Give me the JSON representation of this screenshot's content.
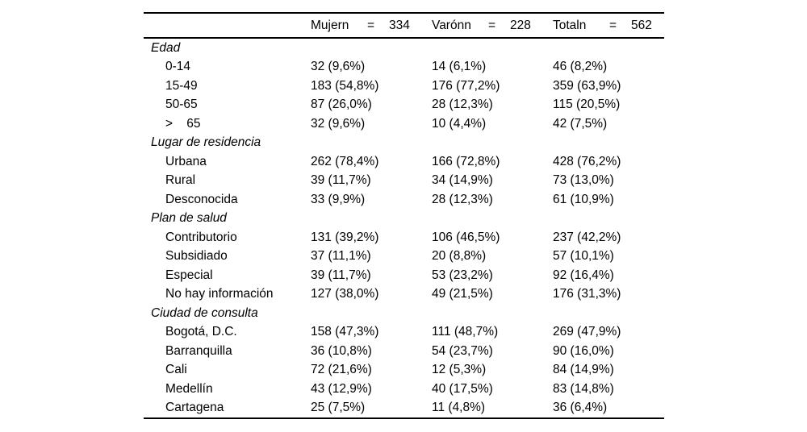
{
  "colors": {
    "background": "#ffffff",
    "text": "#000000",
    "rule": "#000000"
  },
  "table": {
    "header": {
      "columns": [
        {
          "label": "Mujern",
          "eq": "=",
          "value": "334"
        },
        {
          "label": "Varónn",
          "eq": "=",
          "value": "228"
        },
        {
          "label": "Totaln",
          "eq": "=",
          "value": "562"
        }
      ]
    },
    "sections": [
      {
        "title": "Edad",
        "rows": [
          {
            "label": "0-14",
            "mujer": "32 (9,6%)",
            "varon": "14 (6,1%)",
            "total": "46 (8,2%)"
          },
          {
            "label": "15-49",
            "mujer": "183 (54,8%)",
            "varon": "176 (77,2%)",
            "total": "359 (63,9%)"
          },
          {
            "label": "50-65",
            "mujer": "87 (26,0%)",
            "varon": "28 (12,3%)",
            "total": "115 (20,5%)"
          },
          {
            "label": ">    65",
            "mujer": "32 (9,6%)",
            "varon": "10 (4,4%)",
            "total": "42 (7,5%)"
          }
        ]
      },
      {
        "title": "Lugar de residencia",
        "rows": [
          {
            "label": "Urbana",
            "mujer": "262 (78,4%)",
            "varon": "166 (72,8%)",
            "total": "428 (76,2%)"
          },
          {
            "label": "Rural",
            "mujer": "39 (11,7%)",
            "varon": "34 (14,9%)",
            "total": "73 (13,0%)"
          },
          {
            "label": "Desconocida",
            "mujer": "33 (9,9%)",
            "varon": "28 (12,3%)",
            "total": "61 (10,9%)"
          }
        ]
      },
      {
        "title": "Plan de salud",
        "rows": [
          {
            "label": "Contributorio",
            "mujer": "131 (39,2%)",
            "varon": "106 (46,5%)",
            "total": "237 (42,2%)"
          },
          {
            "label": "Subsidiado",
            "mujer": "37 (11,1%)",
            "varon": "20 (8,8%)",
            "total": "57 (10,1%)"
          },
          {
            "label": "Especial",
            "mujer": "39 (11,7%)",
            "varon": "53 (23,2%)",
            "total": "92 (16,4%)"
          },
          {
            "label": "No hay información",
            "mujer": "127 (38,0%)",
            "varon": "49 (21,5%)",
            "total": "176 (31,3%)"
          }
        ]
      },
      {
        "title": "Ciudad de consulta",
        "rows": [
          {
            "label": "Bogotá, D.C.",
            "mujer": "158 (47,3%)",
            "varon": "111 (48,7%)",
            "total": "269 (47,9%)"
          },
          {
            "label": "Barranquilla",
            "mujer": "36 (10,8%)",
            "varon": "54 (23,7%)",
            "total": "90 (16,0%)"
          },
          {
            "label": "Cali",
            "mujer": "72 (21,6%)",
            "varon": "12 (5,3%)",
            "total": "84 (14,9%)"
          },
          {
            "label": "Medellín",
            "mujer": "43 (12,9%)",
            "varon": "40 (17,5%)",
            "total": "83 (14,8%)"
          },
          {
            "label": "Cartagena",
            "mujer": "25 (7,5%)",
            "varon": "11 (4,8%)",
            "total": "36 (6,4%)"
          }
        ]
      }
    ]
  }
}
